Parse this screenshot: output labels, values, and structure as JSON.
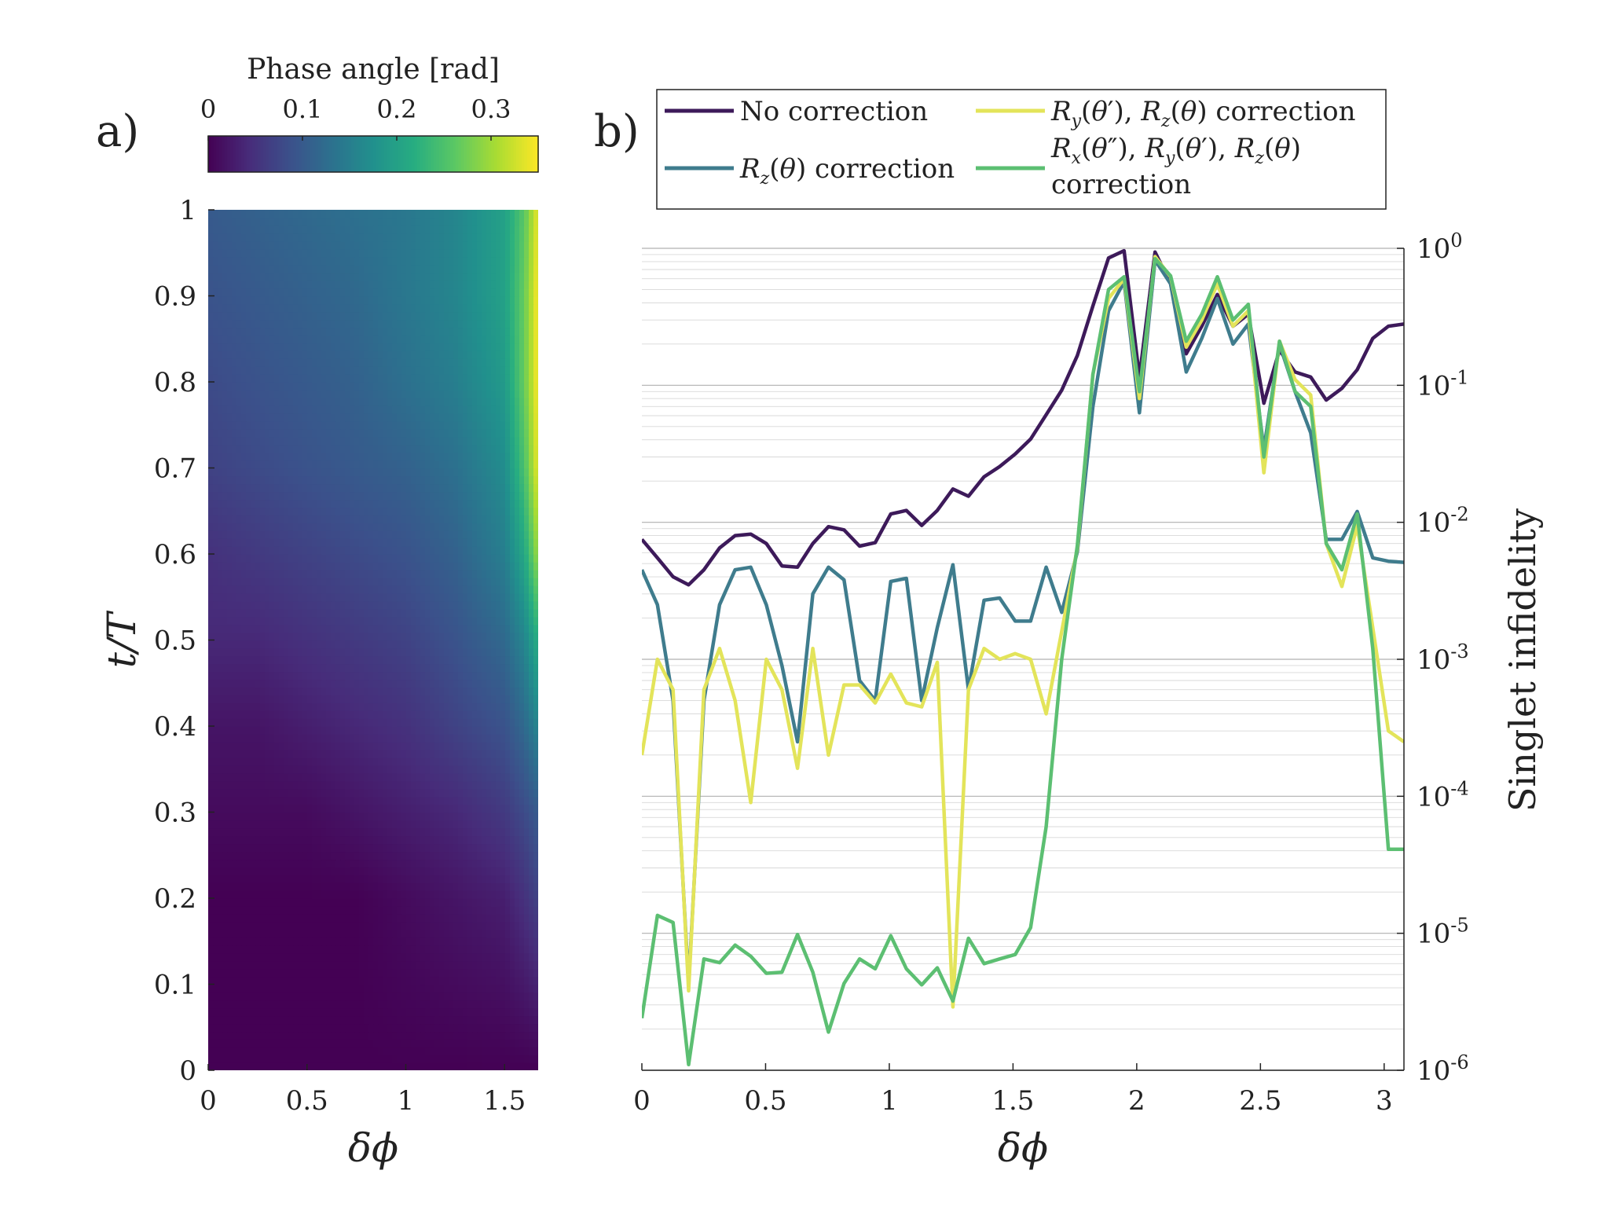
{
  "panel_a_label": "a)",
  "panel_b_label": "b)",
  "chart_data": [
    {
      "type": "heatmap",
      "colorbar": {
        "label": "Phase angle [rad]",
        "range": [
          0,
          0.35
        ],
        "ticks": [
          0,
          0.1,
          0.2,
          0.3
        ],
        "tick_labels": [
          "0",
          "0.1",
          "0.2",
          "0.3"
        ],
        "colormap": "viridis"
      },
      "xlabel": "δϕ",
      "ylabel": "t/T",
      "xlim": [
        0,
        1.67
      ],
      "ylim": [
        0,
        1
      ],
      "xticks": [
        0,
        0.5,
        1,
        1.5
      ],
      "xtick_labels": [
        "0",
        "0.5",
        "1",
        "1.5"
      ],
      "yticks": [
        0,
        0.1,
        0.2,
        0.3,
        0.4,
        0.5,
        0.6,
        0.7,
        0.8,
        0.9,
        1
      ],
      "ytick_labels": [
        "0",
        "0.1",
        "0.2",
        "0.3",
        "0.4",
        "0.5",
        "0.6",
        "0.7",
        "0.8",
        "0.9",
        "1"
      ],
      "x": [
        0,
        0.25,
        0.5,
        0.75,
        1.0,
        1.25,
        1.5,
        1.6,
        1.67
      ],
      "y": [
        0,
        0.2,
        0.3,
        0.4,
        0.5,
        0.6,
        0.7,
        0.8,
        0.9,
        1.0
      ],
      "z": [
        [
          0.0,
          0.0,
          0.0,
          0.0,
          0.0,
          0.0,
          0.0,
          0.0,
          0.0
        ],
        [
          0.0,
          0.0,
          0.0,
          0.0,
          0.01,
          0.02,
          0.03,
          0.05,
          0.07
        ],
        [
          0.01,
          0.01,
          0.01,
          0.02,
          0.03,
          0.04,
          0.06,
          0.08,
          0.1
        ],
        [
          0.02,
          0.02,
          0.03,
          0.04,
          0.05,
          0.07,
          0.09,
          0.12,
          0.16
        ],
        [
          0.04,
          0.04,
          0.05,
          0.06,
          0.07,
          0.09,
          0.12,
          0.16,
          0.22
        ],
        [
          0.05,
          0.06,
          0.07,
          0.08,
          0.09,
          0.11,
          0.15,
          0.21,
          0.3
        ],
        [
          0.07,
          0.08,
          0.09,
          0.1,
          0.11,
          0.13,
          0.17,
          0.25,
          0.34
        ],
        [
          0.08,
          0.09,
          0.1,
          0.11,
          0.13,
          0.15,
          0.19,
          0.27,
          0.35
        ],
        [
          0.09,
          0.1,
          0.11,
          0.12,
          0.14,
          0.16,
          0.2,
          0.27,
          0.35
        ],
        [
          0.1,
          0.11,
          0.12,
          0.13,
          0.14,
          0.16,
          0.2,
          0.26,
          0.34
        ]
      ]
    },
    {
      "type": "line",
      "xlabel": "δϕ",
      "ylabel": "Singlet infidelity",
      "xlim": [
        0,
        3.08
      ],
      "ylim": [
        1e-06,
        1
      ],
      "yscale": "log",
      "grid": true,
      "y_axis_side": "right",
      "xticks": [
        0,
        0.5,
        1,
        1.5,
        2,
        2.5,
        3
      ],
      "xtick_labels": [
        "0",
        "0.5",
        "1",
        "1.5",
        "2",
        "2.5",
        "3"
      ],
      "yticks": [
        1e-06,
        1e-05,
        0.0001,
        0.001,
        0.01,
        0.1,
        1
      ],
      "ytick_exponents": [
        "-6",
        "-5",
        "-4",
        "-3",
        "-2",
        "-1",
        "0"
      ],
      "legend_position": "top",
      "x": [
        0,
        0.063,
        0.126,
        0.189,
        0.251,
        0.314,
        0.377,
        0.44,
        0.503,
        0.566,
        0.629,
        0.691,
        0.754,
        0.817,
        0.88,
        0.943,
        1.006,
        1.069,
        1.131,
        1.194,
        1.257,
        1.32,
        1.383,
        1.446,
        1.509,
        1.571,
        1.634,
        1.697,
        1.76,
        1.823,
        1.886,
        1.949,
        2.011,
        2.074,
        2.137,
        2.2,
        2.263,
        2.326,
        2.389,
        2.451,
        2.514,
        2.577,
        2.64,
        2.703,
        2.766,
        2.829,
        2.891,
        2.954,
        3.017,
        3.08
      ],
      "series": [
        {
          "name": "No correction",
          "color": "#3d1a5a",
          "values": [
            0.0075,
            0.0055,
            0.004,
            0.0035,
            0.0045,
            0.0065,
            0.008,
            0.0082,
            0.007,
            0.0048,
            0.0047,
            0.007,
            0.0093,
            0.0088,
            0.0067,
            0.0071,
            0.0115,
            0.0122,
            0.0095,
            0.0122,
            0.0175,
            0.0155,
            0.0215,
            0.0255,
            0.0315,
            0.0405,
            0.061,
            0.092,
            0.165,
            0.38,
            0.85,
            0.96,
            0.115,
            0.94,
            0.55,
            0.17,
            0.27,
            0.46,
            0.27,
            0.33,
            0.074,
            0.18,
            0.125,
            0.115,
            0.078,
            0.095,
            0.13,
            0.22,
            0.27,
            0.28
          ]
        },
        {
          "name": "R_z(θ) correction",
          "color": "#3f7c8d",
          "values": [
            0.0045,
            0.0025,
            0.0005,
            4.2e-06,
            0.0005,
            0.0025,
            0.0045,
            0.0047,
            0.0025,
            0.0009,
            0.00025,
            0.003,
            0.0047,
            0.0038,
            0.0007,
            0.0005,
            0.0037,
            0.0039,
            0.0005,
            0.0017,
            0.0049,
            0.0006,
            0.0027,
            0.0028,
            0.0019,
            0.0019,
            0.0047,
            0.0022,
            0.0061,
            0.07,
            0.35,
            0.57,
            0.063,
            0.82,
            0.55,
            0.125,
            0.22,
            0.43,
            0.2,
            0.28,
            0.034,
            0.2,
            0.09,
            0.045,
            0.0075,
            0.0075,
            0.012,
            0.0055,
            0.0052,
            0.0051
          ]
        },
        {
          "name": "R_y(θ′), R_z(θ) correction",
          "color": "#e3e45a",
          "values": [
            0.0002,
            0.001,
            0.0006,
            3.8e-06,
            0.0006,
            0.0012,
            0.0005,
            9e-05,
            0.001,
            0.0006,
            0.00016,
            0.0012,
            0.0002,
            0.00065,
            0.00065,
            0.00048,
            0.00078,
            0.00048,
            0.00045,
            0.00095,
            2.9e-06,
            0.0006,
            0.0012,
            0.001,
            0.0011,
            0.001,
            0.0004,
            0.0016,
            0.0065,
            0.12,
            0.43,
            0.6,
            0.08,
            0.87,
            0.62,
            0.19,
            0.3,
            0.55,
            0.27,
            0.35,
            0.023,
            0.21,
            0.11,
            0.085,
            0.007,
            0.0034,
            0.0095,
            0.0017,
            0.0003,
            0.00025
          ]
        },
        {
          "name": "R_x(θ″), R_y(θ′), R_z(θ) correction",
          "color": "#5cbf72",
          "values": [
            2.4e-06,
            1.35e-05,
            1.2e-05,
            1.1e-06,
            6.5e-06,
            6.1e-06,
            8.2e-06,
            6.8e-06,
            5.1e-06,
            5.2e-06,
            9.8e-06,
            5.2e-06,
            1.9e-06,
            4.3e-06,
            6.5e-06,
            5.5e-06,
            9.6e-06,
            5.5e-06,
            4.2e-06,
            5.6e-06,
            3.2e-06,
            9.2e-06,
            6e-06,
            6.5e-06,
            7e-06,
            1.1e-05,
            6e-05,
            0.001,
            0.0068,
            0.12,
            0.5,
            0.62,
            0.09,
            0.84,
            0.63,
            0.21,
            0.33,
            0.62,
            0.3,
            0.39,
            0.03,
            0.21,
            0.09,
            0.07,
            0.007,
            0.0045,
            0.0115,
            0.0012,
            4.1e-05,
            4.1e-05
          ]
        }
      ]
    }
  ]
}
